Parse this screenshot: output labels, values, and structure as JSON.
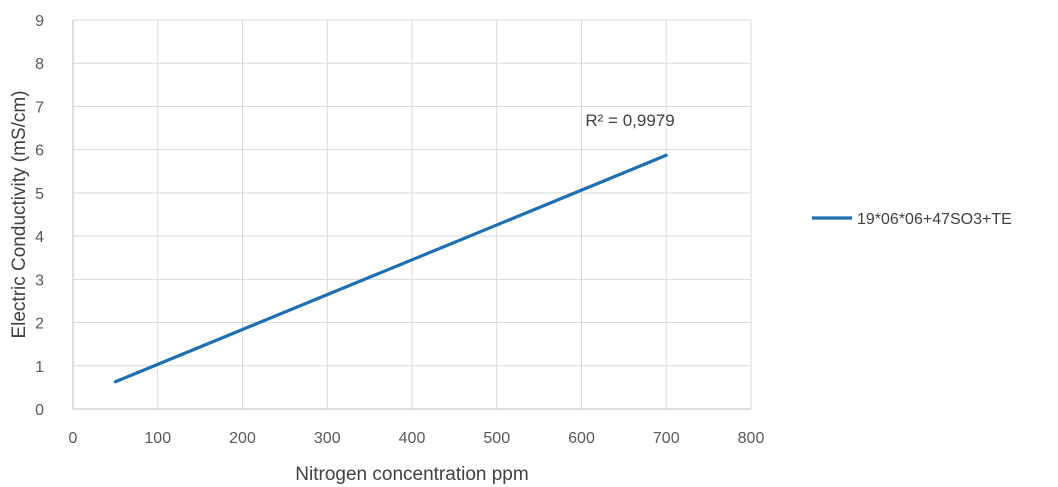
{
  "chart_data": {
    "type": "line",
    "title": "",
    "xlabel": "Nitrogen concentration ppm",
    "ylabel": "Electric Conductivity (mS/cm)",
    "xlim": [
      0,
      800
    ],
    "ylim": [
      0,
      9
    ],
    "x_ticks": [
      0,
      100,
      200,
      300,
      400,
      500,
      600,
      700,
      800
    ],
    "y_ticks": [
      0,
      1,
      2,
      3,
      4,
      5,
      6,
      7,
      8,
      9
    ],
    "grid": true,
    "legend_position": "right",
    "series": [
      {
        "name": "19*06*06+47SO3+TE",
        "color": "#1f6fb5",
        "x": [
          50,
          700
        ],
        "y": [
          0.63,
          5.87
        ]
      }
    ],
    "annotations": [
      {
        "text": "R² = 0,9979",
        "x": 640,
        "y": 6.55
      }
    ]
  }
}
